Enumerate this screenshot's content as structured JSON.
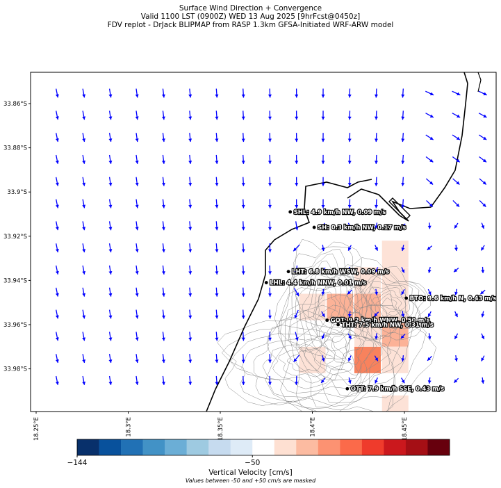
{
  "titles": {
    "line1": "Surface Wind Direction + Convergence",
    "line2": "Valid 1100 LST (0900Z) WED 13 Aug 2025 [9hrFcst@0450z]",
    "line3": "FDV replot - DrJack BLIPMAP from RASP 1.3km GFSA-Initiated WRF-ARW model"
  },
  "colorbar": {
    "label": "Vertical Velocity [cm/s]",
    "note": "Values between -50 and +50 cm/s are masked",
    "tick_labels": [
      "−144",
      "−50"
    ],
    "colors": [
      "#08306b",
      "#08519c",
      "#2171b5",
      "#4292c6",
      "#6baed6",
      "#9ecae1",
      "#c6dbef",
      "#deebf7",
      "#ffffff",
      "#fee0d2",
      "#fcbba1",
      "#fc9272",
      "#fb6a4a",
      "#ef3b2c",
      "#cb181d",
      "#a50f15",
      "#67000d"
    ]
  },
  "colors": {
    "wind_arrow": "#0000ff",
    "coastline": "#000000",
    "contour": "#888888",
    "station": "#000000",
    "label_halo": "#000000"
  },
  "chart_data": {
    "type": "map",
    "x_ticks": [
      "18.25°E",
      "18.3°E",
      "18.35°E",
      "18.4°E",
      "18.45°E"
    ],
    "y_ticks": [
      "33.86°S",
      "33.88°S",
      "33.9°S",
      "33.92°S",
      "33.94°S",
      "33.96°S",
      "33.98°S"
    ],
    "lon_range": [
      18.25,
      18.5
    ],
    "lat_range": [
      -34.0,
      -33.847
    ],
    "stations": [
      {
        "name": "SHL",
        "label": "SHL: 4.9 km/h NW, 0.09 m/s",
        "lon": 18.388,
        "lat": -33.909
      },
      {
        "name": "SH",
        "label": "SH: 0.3 km/h NW, 0.17 m/s",
        "lon": 18.401,
        "lat": -33.916
      },
      {
        "name": "LHT",
        "label": "LHT: 6.8 km/h WSW, 0.09 m/s",
        "lon": 18.387,
        "lat": -33.936
      },
      {
        "name": "LHL",
        "label": "LHL: 4.4 km/h NNW, 0.01 m/s",
        "lon": 18.375,
        "lat": -33.941
      },
      {
        "name": "BTO",
        "label": "BTO: 9.6 km/h N, 0.43 m/s",
        "lon": 18.451,
        "lat": -33.948
      },
      {
        "name": "GOT",
        "label": "GOT: 9.2 km/h WNW, 0.50 m/s",
        "lon": 18.408,
        "lat": -33.958
      },
      {
        "name": "THT",
        "label": "THT: 7.5 km/h NW, 0.31 m/s",
        "lon": 18.414,
        "lat": -33.96
      },
      {
        "name": "OTT",
        "label": "OTT: 7.9 km/h SSE, 0.43 m/s",
        "lon": 18.419,
        "lat": -33.989
      }
    ],
    "convergence_cells": [
      {
        "lon": 18.43,
        "lat": -33.94,
        "level": "weak"
      },
      {
        "lon": 18.445,
        "lat": -33.94,
        "level": "weak"
      },
      {
        "lon": 18.445,
        "lat": -33.928,
        "level": "weak"
      },
      {
        "lon": 18.415,
        "lat": -33.952,
        "level": "moderate"
      },
      {
        "lon": 18.43,
        "lat": -33.952,
        "level": "moderate"
      },
      {
        "lon": 18.4,
        "lat": -33.952,
        "level": "weak"
      },
      {
        "lon": 18.445,
        "lat": -33.952,
        "level": "weak"
      },
      {
        "lon": 18.445,
        "lat": -33.964,
        "level": "moderate"
      },
      {
        "lon": 18.43,
        "lat": -33.964,
        "level": "weak"
      },
      {
        "lon": 18.4,
        "lat": -33.976,
        "level": "weak"
      },
      {
        "lon": 18.43,
        "lat": -33.976,
        "level": "strong"
      },
      {
        "lon": 18.445,
        "lat": -33.976,
        "level": "weak"
      },
      {
        "lon": 18.445,
        "lat": -33.998,
        "level": "weak"
      }
    ],
    "wind_field": {
      "description_rows": 14,
      "columns": 17,
      "dominant_direction": "from N (arrows pointing S)"
    }
  }
}
